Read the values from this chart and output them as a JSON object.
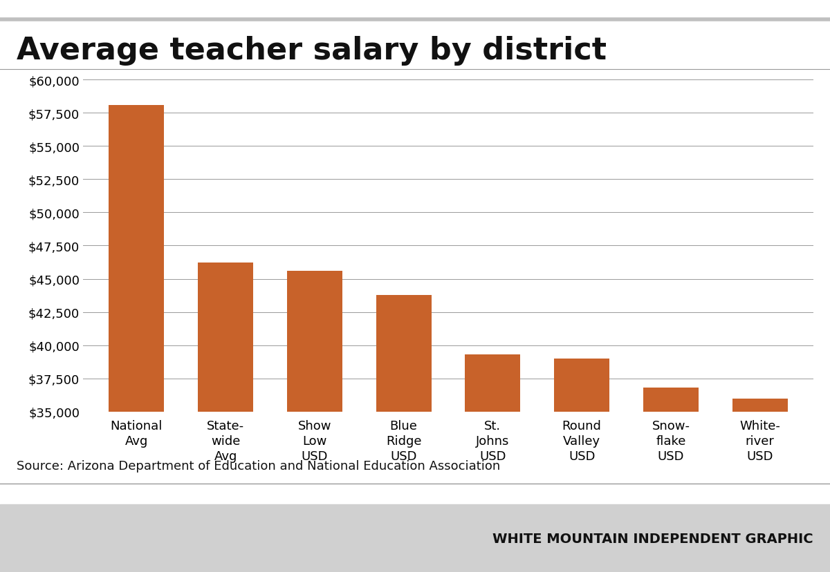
{
  "title": "Average teacher salary by district",
  "categories": [
    "National\nAvg",
    "State-\nwide\nAvg",
    "Show\nLow\nUSD",
    "Blue\nRidge\nUSD",
    "St.\nJohns\nUSD",
    "Round\nValley\nUSD",
    "Snow-\nflake\nUSD",
    "White-\nriver\nUSD"
  ],
  "values": [
    58100,
    46200,
    45600,
    43800,
    39300,
    39000,
    36800,
    36000
  ],
  "bar_color": "#C8622A",
  "ylim": [
    35000,
    60000
  ],
  "yticks": [
    35000,
    37500,
    40000,
    42500,
    45000,
    47500,
    50000,
    52500,
    55000,
    57500,
    60000
  ],
  "source_text": "Source: Arizona Department of Education and National Education Association",
  "footer_text": "WHITE MOUNTAIN INDEPENDENT GRAPHIC",
  "title_fontsize": 32,
  "tick_fontsize": 13,
  "xtick_fontsize": 13,
  "source_fontsize": 13,
  "footer_fontsize": 14,
  "background_color": "#ffffff",
  "grid_color": "#999999",
  "bar_width": 0.62,
  "top_stripe_color": "#c0c0c0",
  "bottom_stripe_color": "#d0d0d0"
}
